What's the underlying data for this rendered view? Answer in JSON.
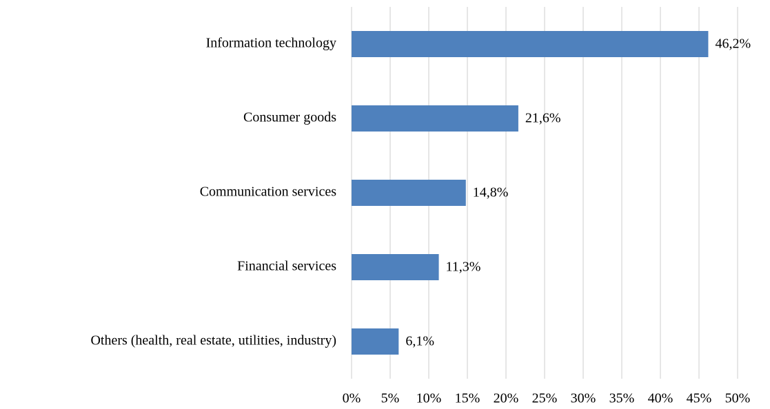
{
  "chart_data": {
    "type": "barh",
    "categories": [
      "Information technology",
      "Consumer goods",
      "Communication services",
      "Financial services",
      "Others (health, real estate, utilities, industry)"
    ],
    "values": [
      46.2,
      21.6,
      14.8,
      11.3,
      6.1
    ],
    "value_labels": [
      "46,2%",
      "21,6%",
      "14,8%",
      "11,3%",
      "6,1%"
    ],
    "color": "#4f81bd",
    "xlim": [
      0,
      50
    ],
    "xticks": [
      {
        "value": 0,
        "label": "0%"
      },
      {
        "value": 5,
        "label": "5%"
      },
      {
        "value": 10,
        "label": "10%"
      },
      {
        "value": 15,
        "label": "15%"
      },
      {
        "value": 20,
        "label": "20%"
      },
      {
        "value": 25,
        "label": "25%"
      },
      {
        "value": 30,
        "label": "30%"
      },
      {
        "value": 35,
        "label": "35%"
      },
      {
        "value": 40,
        "label": "40%"
      },
      {
        "value": 45,
        "label": "45%"
      },
      {
        "value": 50,
        "label": "50%"
      }
    ],
    "grid": true
  }
}
